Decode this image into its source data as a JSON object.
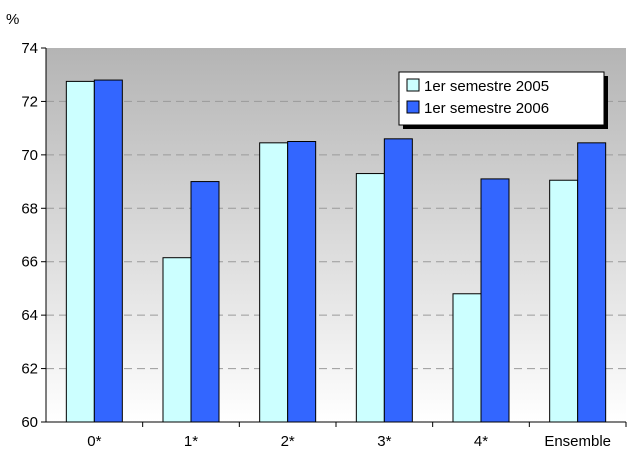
{
  "chart_data": {
    "type": "bar",
    "title": "",
    "xlabel": "",
    "ylabel": "%",
    "ylim": [
      60,
      74
    ],
    "yticks": [
      60,
      62,
      64,
      66,
      68,
      70,
      72,
      74
    ],
    "grid": true,
    "legend_position": "top-right",
    "categories": [
      "0*",
      "1*",
      "2*",
      "3*",
      "4*",
      "Ensemble"
    ],
    "series": [
      {
        "name": "1er semestre 2005",
        "color": "#ccffff",
        "values": [
          72.75,
          66.15,
          70.45,
          69.3,
          64.8,
          69.05
        ]
      },
      {
        "name": "1er semestre 2006",
        "color": "#3366ff",
        "values": [
          72.8,
          69.0,
          70.5,
          70.6,
          69.1,
          70.45
        ]
      }
    ]
  }
}
